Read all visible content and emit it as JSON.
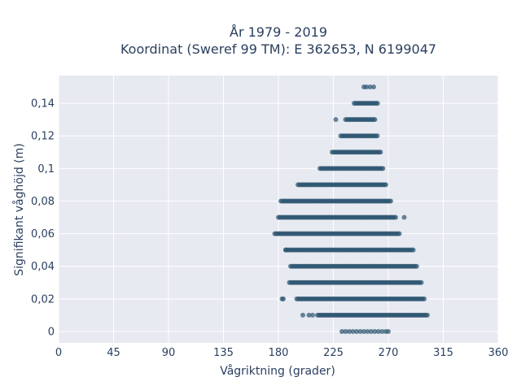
{
  "chart_data": {
    "type": "scatter",
    "title_lines": [
      "År 1979 - 2019",
      "Koordinat (Sweref 99 TM): E 362653, N 6199047"
    ],
    "xlabel": "Vågriktning (grader)",
    "ylabel": "Signifikant våghöjd (m)",
    "xlim": [
      0,
      360
    ],
    "ylim": [
      -0.007,
      0.157
    ],
    "x_ticks": [
      0,
      45,
      90,
      135,
      180,
      225,
      270,
      315,
      360
    ],
    "x_tick_labels": [
      "0",
      "45",
      "90",
      "135",
      "180",
      "225",
      "270",
      "315",
      "360"
    ],
    "y_ticks": [
      0,
      0.02,
      0.04,
      0.06,
      0.08,
      0.1,
      0.12,
      0.14
    ],
    "y_tick_labels": [
      "0",
      "0,02",
      "0,04",
      "0,06",
      "0,08",
      "0,1",
      "0,12",
      "0,14"
    ],
    "grid": true,
    "marker_color": "#2e5670",
    "plot_background": "#e8eaf2",
    "bands": [
      {
        "y": 0.0,
        "x_min": 232,
        "x_max": 268,
        "sparse": true
      },
      {
        "y": 0.01,
        "x_min": 212,
        "x_max": 303,
        "sparse": false
      },
      {
        "y": 0.02,
        "x_min": 195,
        "x_max": 300,
        "sparse": false
      },
      {
        "y": 0.03,
        "x_min": 189,
        "x_max": 297,
        "sparse": false
      },
      {
        "y": 0.04,
        "x_min": 190,
        "x_max": 294,
        "sparse": false
      },
      {
        "y": 0.05,
        "x_min": 186,
        "x_max": 291,
        "sparse": false
      },
      {
        "y": 0.06,
        "x_min": 177,
        "x_max": 279,
        "sparse": false
      },
      {
        "y": 0.07,
        "x_min": 180,
        "x_max": 277,
        "sparse": false
      },
      {
        "y": 0.08,
        "x_min": 182,
        "x_max": 272,
        "sparse": false
      },
      {
        "y": 0.09,
        "x_min": 196,
        "x_max": 269,
        "sparse": false
      },
      {
        "y": 0.1,
        "x_min": 214,
        "x_max": 266,
        "sparse": false
      },
      {
        "y": 0.11,
        "x_min": 224,
        "x_max": 264,
        "sparse": false
      },
      {
        "y": 0.12,
        "x_min": 231,
        "x_max": 261,
        "sparse": false
      },
      {
        "y": 0.13,
        "x_min": 235,
        "x_max": 259,
        "sparse": false
      },
      {
        "y": 0.14,
        "x_min": 242,
        "x_max": 262,
        "sparse": false
      },
      {
        "y": 0.15,
        "x_min": 252,
        "x_max": 260,
        "sparse": true
      }
    ],
    "outliers": [
      {
        "x": 183,
        "y": 0.02
      },
      {
        "x": 184,
        "y": 0.02
      },
      {
        "x": 200,
        "y": 0.01
      },
      {
        "x": 205,
        "y": 0.01
      },
      {
        "x": 208,
        "y": 0.01
      },
      {
        "x": 186,
        "y": 0.05
      },
      {
        "x": 283,
        "y": 0.07
      },
      {
        "x": 227,
        "y": 0.13
      },
      {
        "x": 270,
        "y": 0.0
      },
      {
        "x": 250,
        "y": 0.15
      }
    ]
  }
}
